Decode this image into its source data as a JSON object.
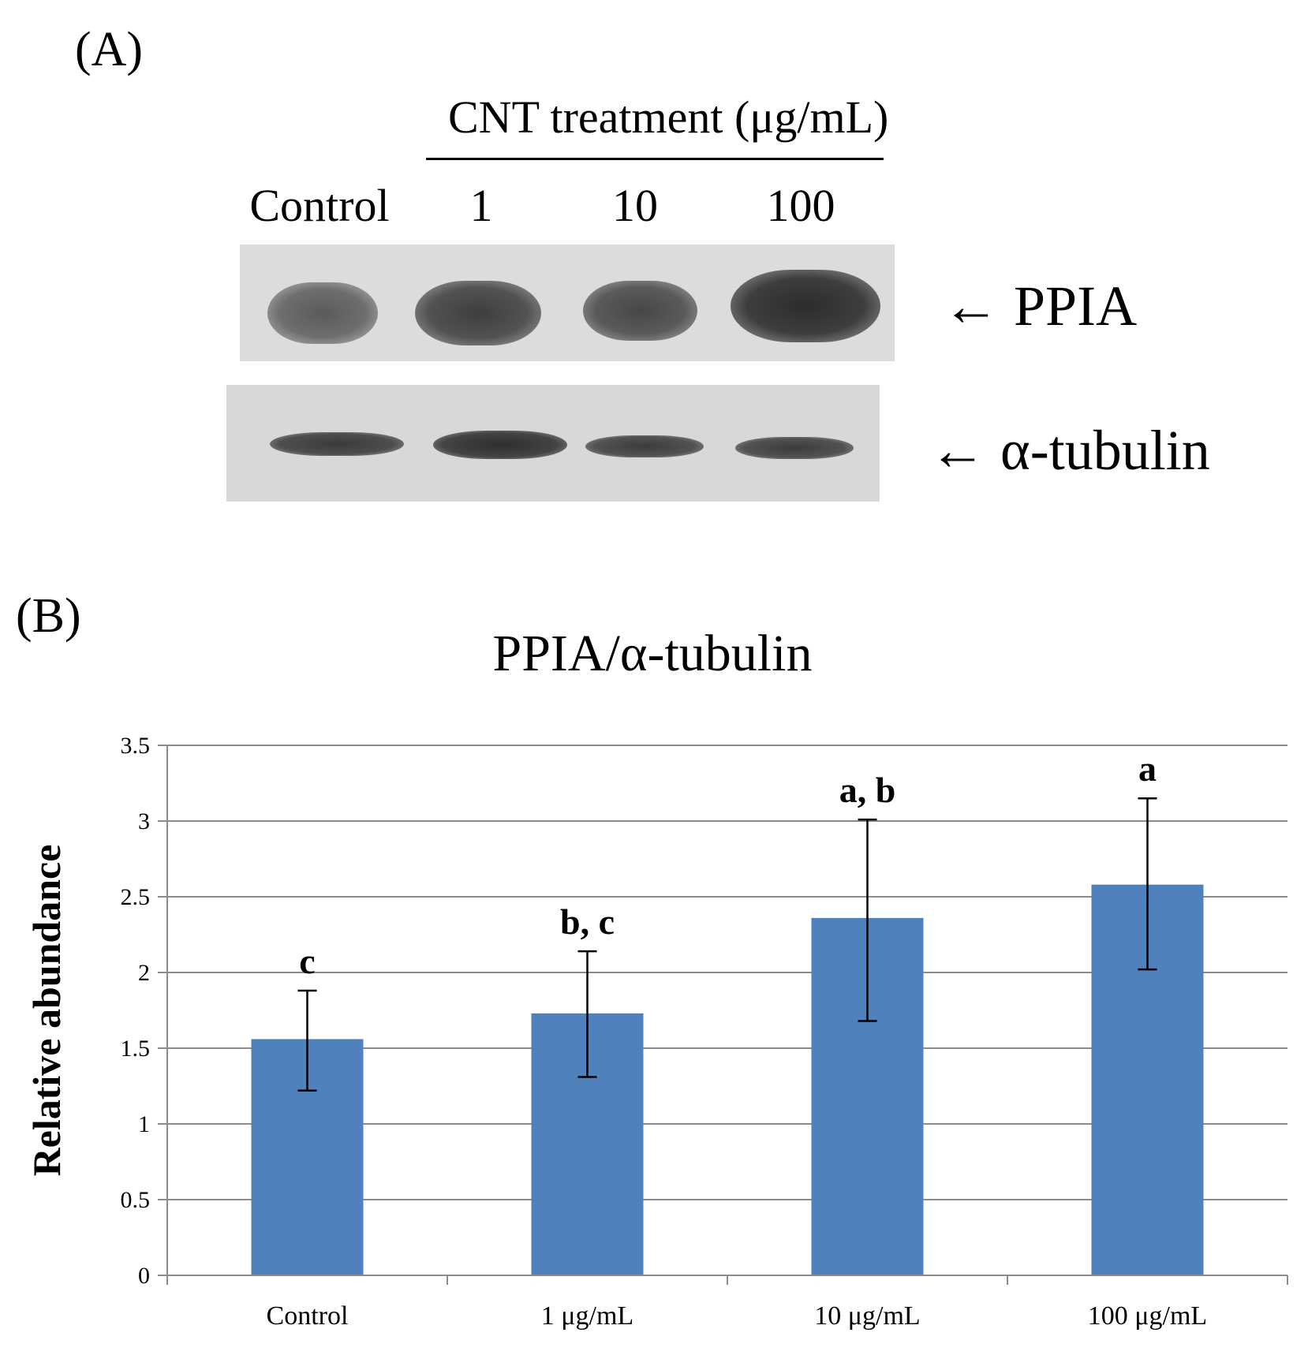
{
  "panel_a": {
    "label": "(A)",
    "treatment_header": "CNT treatment  (μg/mL)",
    "lanes": [
      "Control",
      "1",
      "10",
      "100"
    ],
    "band_labels": {
      "ppia": "← PPIA",
      "tubulin": "← α-tubulin"
    }
  },
  "panel_b": {
    "label": "(B)"
  },
  "chart_data": {
    "type": "bar",
    "title": "PPIA/α-tubulin",
    "xlabel": "",
    "ylabel": "Relative abundance",
    "categories": [
      "Control",
      "1 μg/mL",
      "10 μg/mL",
      "100 μg/mL"
    ],
    "values": [
      1.56,
      1.73,
      2.36,
      2.58
    ],
    "error_low": [
      1.22,
      1.31,
      1.68,
      2.02
    ],
    "error_high": [
      1.88,
      2.14,
      3.01,
      3.15
    ],
    "significance": [
      "c",
      "b, c",
      "a, b",
      "a"
    ],
    "ylim": [
      0,
      3.5
    ],
    "yticks": [
      "0",
      "0.5",
      "1",
      "1.5",
      "2",
      "2.5",
      "3",
      "3.5"
    ],
    "grid": true,
    "bar_color": "#4f81bd"
  }
}
